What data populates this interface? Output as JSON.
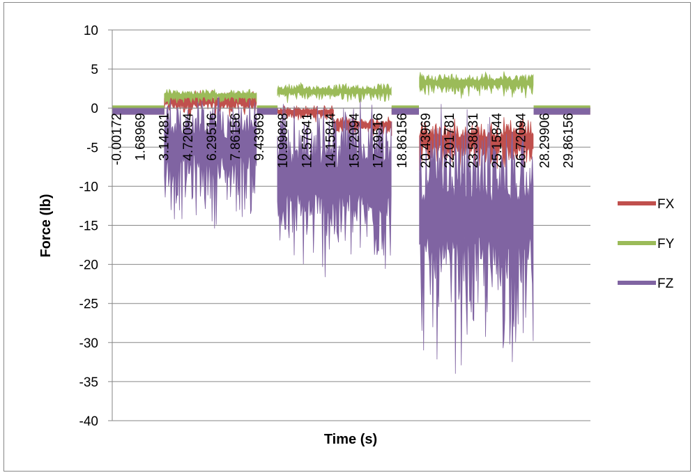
{
  "chart_data": {
    "type": "area",
    "title": "",
    "xlabel": "Time (s)",
    "ylabel": "Force (lb)",
    "ylim": [
      -40,
      10
    ],
    "yticks": [
      "10",
      "5",
      "0",
      "-5",
      "-10",
      "-15",
      "-20",
      "-25",
      "-30",
      "-35",
      "-40"
    ],
    "xticks": [
      "-0.00172",
      "1.68969",
      "3.14281",
      "4.72094",
      "6.29516",
      "7.86156",
      "9.43969",
      "10.99828",
      "12.57641",
      "14.15844",
      "15.72094",
      "17.29516",
      "18.86156",
      "20.43969",
      "22.01781",
      "23.58031",
      "25.15844",
      "26.72094",
      "28.29906",
      "29.86156"
    ],
    "grid": "horizontal",
    "legend_position": "right",
    "series": [
      {
        "name": "FX",
        "color": "#c0504d",
        "segments": [
          {
            "t_start": 0.0,
            "t_end": 3.6,
            "min": -0.8,
            "max": 0.2
          },
          {
            "t_start": 3.6,
            "t_end": 10.0,
            "min": -1.5,
            "max": 2.5
          },
          {
            "t_start": 10.0,
            "t_end": 11.4,
            "min": -0.8,
            "max": 0.2
          },
          {
            "t_start": 11.4,
            "t_end": 15.3,
            "min": -2.0,
            "max": 0.5
          },
          {
            "t_start": 15.3,
            "t_end": 19.3,
            "min": -3.8,
            "max": -1.0
          },
          {
            "t_start": 19.3,
            "t_end": 21.2,
            "min": -0.8,
            "max": 0.2
          },
          {
            "t_start": 21.2,
            "t_end": 29.1,
            "min": -9.0,
            "max": -1.0
          },
          {
            "t_start": 29.1,
            "t_end": 33.0,
            "min": -0.8,
            "max": 0.2
          }
        ]
      },
      {
        "name": "FY",
        "color": "#9bbb59",
        "segments": [
          {
            "t_start": 0.0,
            "t_end": 3.6,
            "min": -0.5,
            "max": 0.3
          },
          {
            "t_start": 3.6,
            "t_end": 10.0,
            "min": 0.3,
            "max": 2.5
          },
          {
            "t_start": 10.0,
            "t_end": 11.4,
            "min": -0.5,
            "max": 0.3
          },
          {
            "t_start": 11.4,
            "t_end": 19.3,
            "min": 0.5,
            "max": 3.3
          },
          {
            "t_start": 19.3,
            "t_end": 21.2,
            "min": -0.5,
            "max": 0.3
          },
          {
            "t_start": 21.2,
            "t_end": 29.1,
            "min": 1.0,
            "max": 4.8
          },
          {
            "t_start": 29.1,
            "t_end": 33.0,
            "min": -0.5,
            "max": 0.3
          }
        ]
      },
      {
        "name": "FZ",
        "color": "#8064a2",
        "segments": [
          {
            "t_start": 0.0,
            "t_end": 3.6,
            "min": -0.8,
            "max": 0.0
          },
          {
            "t_start": 3.6,
            "t_end": 10.0,
            "min": -16.5,
            "max": 2.8
          },
          {
            "t_start": 10.0,
            "t_end": 11.4,
            "min": -0.8,
            "max": 0.0
          },
          {
            "t_start": 11.4,
            "t_end": 19.3,
            "min": -25.2,
            "max": 1.8
          },
          {
            "t_start": 19.3,
            "t_end": 21.2,
            "min": -0.8,
            "max": 0.0
          },
          {
            "t_start": 21.2,
            "t_end": 29.1,
            "min": -36.8,
            "max": 0.8
          },
          {
            "t_start": 29.1,
            "t_end": 33.0,
            "min": -0.8,
            "max": 0.0
          }
        ]
      }
    ]
  }
}
